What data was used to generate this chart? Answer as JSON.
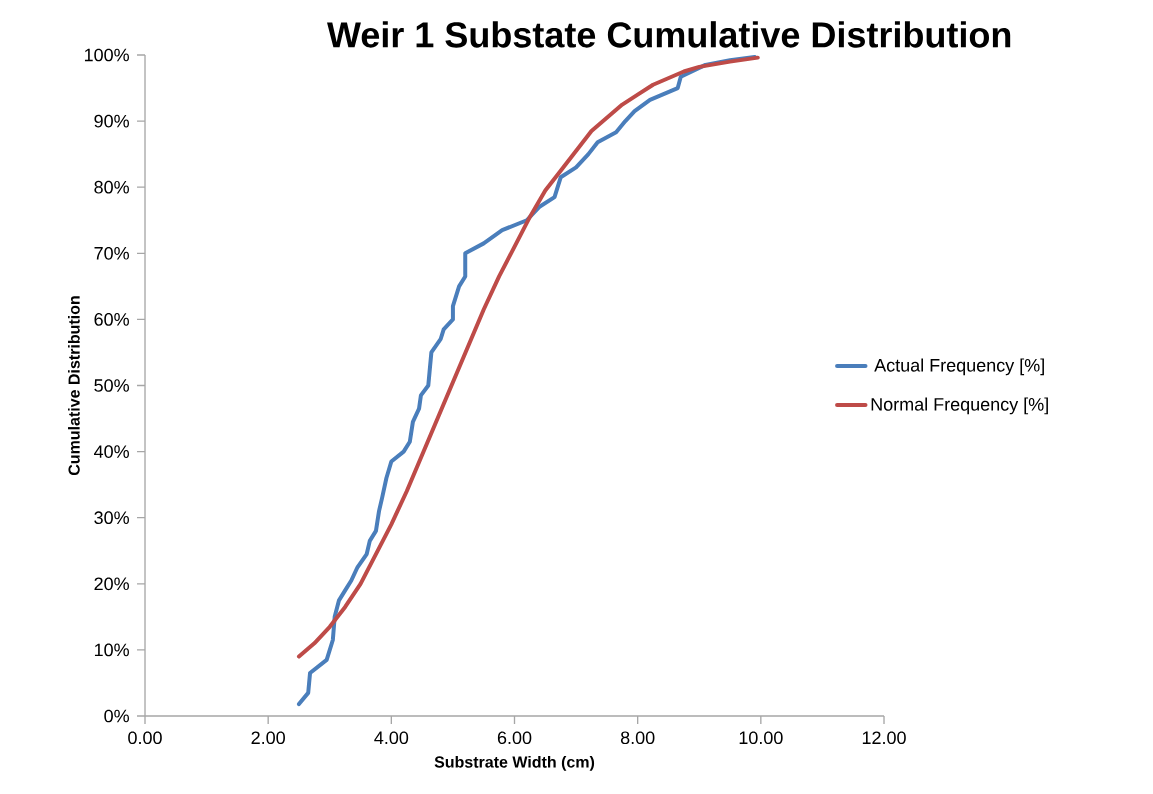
{
  "chart_data": {
    "type": "line",
    "title": "Weir 1 Substate Cumulative Distribution",
    "xlabel": "Substrate Width (cm)",
    "ylabel": "Cumulative Distribution",
    "xlim": [
      0,
      12
    ],
    "ylim": [
      0,
      100
    ],
    "xticks": [
      {
        "value": 0,
        "label": "0.00"
      },
      {
        "value": 2,
        "label": "2.00"
      },
      {
        "value": 4,
        "label": "4.00"
      },
      {
        "value": 6,
        "label": "6.00"
      },
      {
        "value": 8,
        "label": "8.00"
      },
      {
        "value": 10,
        "label": "10.00"
      },
      {
        "value": 12,
        "label": "12.00"
      }
    ],
    "yticks": [
      {
        "value": 0,
        "label": "0%"
      },
      {
        "value": 10,
        "label": "10%"
      },
      {
        "value": 20,
        "label": "20%"
      },
      {
        "value": 30,
        "label": "30%"
      },
      {
        "value": 40,
        "label": "40%"
      },
      {
        "value": 50,
        "label": "50%"
      },
      {
        "value": 60,
        "label": "60%"
      },
      {
        "value": 70,
        "label": "70%"
      },
      {
        "value": 80,
        "label": "80%"
      },
      {
        "value": 90,
        "label": "90%"
      },
      {
        "value": 100,
        "label": "100%"
      }
    ],
    "grid": false,
    "legend": "right",
    "marker": "none",
    "line_style": "solid",
    "series": [
      {
        "name": "Actual Frequency [%]",
        "color": "#4a7ebb",
        "x": [
          2.5,
          2.65,
          2.68,
          2.95,
          3.05,
          3.08,
          3.15,
          3.25,
          3.35,
          3.45,
          3.6,
          3.65,
          3.75,
          3.8,
          3.85,
          3.92,
          4.0,
          4.2,
          4.3,
          4.35,
          4.45,
          4.48,
          4.6,
          4.62,
          4.65,
          4.8,
          4.85,
          5.0,
          5.0,
          5.1,
          5.2,
          5.2,
          5.5,
          5.8,
          6.2,
          6.4,
          6.65,
          6.75,
          7.0,
          7.2,
          7.35,
          7.65,
          7.8,
          7.95,
          8.2,
          8.65,
          8.7,
          9.1,
          9.5,
          9.9
        ],
        "values": [
          1.8,
          3.5,
          6.5,
          8.5,
          11.5,
          15,
          17.5,
          19,
          20.5,
          22.5,
          24.5,
          26.5,
          28,
          31,
          33,
          36,
          38.5,
          40,
          41.5,
          44.5,
          46.5,
          48.5,
          50,
          52,
          55,
          57,
          58.5,
          60,
          62,
          65,
          66.5,
          70,
          71.5,
          73.5,
          75,
          77,
          78.5,
          81.5,
          83,
          85,
          86.8,
          88.3,
          90,
          91.5,
          93.2,
          95,
          96.7,
          98.5,
          99.2,
          99.7
        ]
      },
      {
        "name": "Normal Frequency [%]",
        "color": "#be4b48",
        "x": [
          2.5,
          2.75,
          3.0,
          3.25,
          3.5,
          3.75,
          4.0,
          4.25,
          4.5,
          4.75,
          5.0,
          5.25,
          5.5,
          5.75,
          6.0,
          6.25,
          6.5,
          6.75,
          7.0,
          7.25,
          7.5,
          7.75,
          8.0,
          8.25,
          8.5,
          8.75,
          9.0,
          9.5,
          9.95
        ],
        "values": [
          9,
          11,
          13.5,
          16.5,
          20,
          24.5,
          29,
          34,
          39.5,
          45,
          50.5,
          56,
          61.5,
          66.5,
          71,
          75.5,
          79.5,
          82.5,
          85.5,
          88.5,
          90.5,
          92.5,
          94,
          95.5,
          96.5,
          97.5,
          98.2,
          99,
          99.6
        ]
      }
    ]
  }
}
